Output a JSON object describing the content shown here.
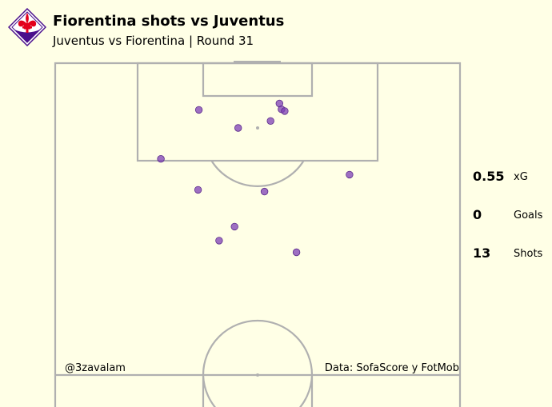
{
  "header": {
    "title": "Fiorentina shots vs Juventus",
    "subtitle": "Juventus vs Fiorentina | Round 31"
  },
  "colors": {
    "background": "#ffffe6",
    "pitch_lines": "#b0b0b0",
    "shot_fill": "#7d3fb5",
    "logo_purple": "#4a0f8c",
    "logo_red": "#e3001b"
  },
  "logo": {
    "icon": "fiorentina-crest-icon"
  },
  "stats": [
    {
      "value": "0.55",
      "label": "xG"
    },
    {
      "value": "0",
      "label": "Goals"
    },
    {
      "value": "13",
      "label": "Shots"
    }
  ],
  "footer": {
    "author": "@3zavalam",
    "source": "Data: SofaScore y FotMob"
  },
  "chart_data": {
    "type": "scatter",
    "description_units": "pitch coordinates: x = width 0-100 (left to right), y = distance from attacked goal line in meters",
    "xlim": [
      0,
      100
    ],
    "ylim_from_goal_m": [
      0,
      55
    ],
    "points": [
      {
        "x": 35.5,
        "y": 8.0
      },
      {
        "x": 55.4,
        "y": 6.9
      },
      {
        "x": 55.9,
        "y": 7.9
      },
      {
        "x": 56.7,
        "y": 8.2
      },
      {
        "x": 53.2,
        "y": 9.9
      },
      {
        "x": 45.2,
        "y": 11.1
      },
      {
        "x": 26.1,
        "y": 16.4
      },
      {
        "x": 72.7,
        "y": 19.1
      },
      {
        "x": 35.3,
        "y": 21.7
      },
      {
        "x": 51.7,
        "y": 22.0
      },
      {
        "x": 44.3,
        "y": 28.0
      },
      {
        "x": 40.5,
        "y": 30.4
      },
      {
        "x": 59.6,
        "y": 32.4
      }
    ]
  }
}
